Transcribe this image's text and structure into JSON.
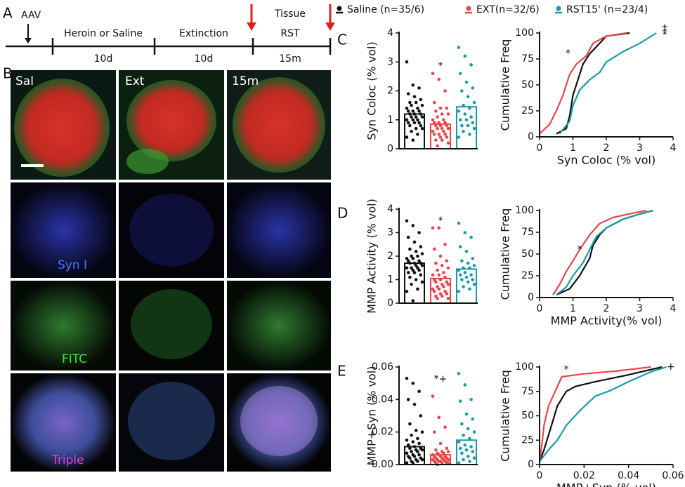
{
  "panel_labels": {
    "a": "A",
    "b": "B",
    "c": "C",
    "d": "D",
    "e": "E"
  },
  "timeline": {
    "aav": "AAV",
    "tissue": "Tissue",
    "phases": [
      {
        "label": "Heroin or Saline",
        "duration": "10d"
      },
      {
        "label": "Extinction",
        "duration": "10d"
      },
      {
        "label": "RST",
        "duration": "15m"
      }
    ]
  },
  "images": {
    "columns": [
      "Sal",
      "Ext",
      "15m"
    ],
    "rows": [
      "Syn I",
      "FITC",
      "Triple"
    ]
  },
  "chart_data": [
    {
      "type": "strip-bar",
      "ylabel": "Syn Coloc (% vol)",
      "ylim": [
        0,
        4
      ],
      "yticks": [
        0,
        1,
        2,
        3,
        4
      ],
      "series": [
        {
          "name": "Saline (n=35/6)",
          "color": "#111111",
          "mean": 1.2,
          "values": [
            3.0,
            2.2,
            2.1,
            1.9,
            1.8,
            1.7,
            1.6,
            1.6,
            1.5,
            1.5,
            1.4,
            1.4,
            1.3,
            1.3,
            1.3,
            1.2,
            1.2,
            1.2,
            1.1,
            1.1,
            1.1,
            1.0,
            1.0,
            1.0,
            0.9,
            0.9,
            0.9,
            0.8,
            0.8,
            0.7,
            0.7,
            0.6,
            0.5,
            0.4,
            0.3
          ]
        },
        {
          "name": "EXT(n=32/6)",
          "color": "#e8464b",
          "mean": 0.85,
          "values": [
            2.6,
            2.4,
            2.0,
            1.6,
            1.4,
            1.4,
            1.3,
            1.2,
            1.2,
            1.1,
            1.0,
            1.0,
            0.9,
            0.9,
            0.9,
            0.8,
            0.8,
            0.8,
            0.7,
            0.7,
            0.7,
            0.6,
            0.6,
            0.5,
            0.5,
            0.5,
            0.4,
            0.4,
            0.3,
            0.3,
            0.2,
            0.1
          ]
        },
        {
          "name": "RST15' (n=23/4)",
          "color": "#1a9aa8",
          "mean": 1.45,
          "values": [
            3.5,
            3.2,
            2.9,
            2.6,
            2.3,
            2.1,
            2.0,
            1.8,
            1.6,
            1.5,
            1.4,
            1.3,
            1.2,
            1.1,
            1.0,
            1.0,
            0.9,
            0.8,
            0.8,
            0.7,
            0.6,
            0.5,
            0.4
          ]
        }
      ],
      "annotations": [
        {
          "text": "*",
          "x": 1,
          "y": 2.85
        }
      ]
    },
    {
      "type": "line",
      "ylabel": "Cumulative Freq",
      "xlabel": "Syn Coloc (% vol)",
      "xlim": [
        0,
        4
      ],
      "xticks": [
        0,
        1,
        2,
        3,
        4
      ],
      "ylim": [
        0,
        100
      ],
      "yticks": [
        0,
        25,
        50,
        75,
        100
      ],
      "series": [
        {
          "color": "#111111",
          "x": [
            0.5,
            0.8,
            0.9,
            1.0,
            1.2,
            1.3,
            1.5,
            1.8,
            2.0,
            2.7
          ],
          "values": [
            3,
            8,
            20,
            40,
            60,
            70,
            80,
            90,
            97,
            100
          ]
        },
        {
          "color": "#e8464b",
          "x": [
            0,
            0.3,
            0.5,
            0.7,
            0.8,
            0.9,
            1.1,
            1.4,
            1.6,
            2.0,
            2.6
          ],
          "values": [
            3,
            12,
            25,
            40,
            50,
            60,
            70,
            78,
            90,
            97,
            100
          ]
        },
        {
          "color": "#1a9aa8",
          "x": [
            0.6,
            0.9,
            1.0,
            1.2,
            1.5,
            1.8,
            2.0,
            2.5,
            3.0,
            3.5
          ],
          "values": [
            3,
            15,
            30,
            45,
            55,
            62,
            72,
            82,
            90,
            100
          ]
        }
      ],
      "annotations": [
        {
          "text": "*",
          "x": 0.85,
          "y": 80
        },
        {
          "text": "‡",
          "x": 3.75,
          "y": 104
        },
        {
          "text": "*",
          "x": 3.75,
          "y": 98
        }
      ]
    },
    {
      "type": "strip-bar",
      "ylabel": "MMP Activity (% vol)",
      "ylim": [
        0,
        4
      ],
      "yticks": [
        0,
        1,
        2,
        3,
        4
      ],
      "series": [
        {
          "color": "#111111",
          "mean": 1.7,
          "values": [
            3.5,
            3.3,
            3.0,
            2.8,
            2.6,
            2.4,
            2.3,
            2.2,
            2.1,
            2.0,
            2.0,
            1.9,
            1.9,
            1.8,
            1.8,
            1.7,
            1.7,
            1.7,
            1.6,
            1.6,
            1.5,
            1.5,
            1.5,
            1.4,
            1.4,
            1.3,
            1.3,
            1.2,
            1.1,
            1.0,
            0.9,
            0.8,
            0.6,
            0.5,
            0.1
          ]
        },
        {
          "color": "#e8464b",
          "mean": 1.05,
          "values": [
            3.2,
            3.2,
            2.5,
            2.3,
            2.0,
            1.8,
            1.7,
            1.6,
            1.5,
            1.4,
            1.3,
            1.2,
            1.2,
            1.1,
            1.0,
            1.0,
            0.9,
            0.9,
            0.8,
            0.8,
            0.7,
            0.7,
            0.6,
            0.6,
            0.5,
            0.5,
            0.4,
            0.4,
            0.3,
            0.3,
            0.2,
            0.2
          ]
        },
        {
          "color": "#1a9aa8",
          "mean": 1.45,
          "values": [
            3.4,
            3.0,
            2.8,
            2.4,
            2.2,
            1.9,
            1.8,
            1.7,
            1.6,
            1.5,
            1.5,
            1.4,
            1.3,
            1.2,
            1.2,
            1.1,
            1.0,
            1.0,
            0.9,
            0.8,
            0.7,
            0.6,
            0.5
          ]
        }
      ],
      "annotations": [
        {
          "text": "*",
          "x": 1,
          "y": 3.5
        }
      ]
    },
    {
      "type": "line",
      "ylabel": "Cumulative Freq",
      "xlabel": "MMP Activity(% vol)",
      "xlim": [
        0,
        4
      ],
      "xticks": [
        0,
        1,
        2,
        3,
        4
      ],
      "ylim": [
        0,
        100
      ],
      "yticks": [
        0,
        25,
        50,
        75,
        100
      ],
      "series": [
        {
          "color": "#111111",
          "x": [
            0.5,
            0.9,
            1.2,
            1.5,
            1.6,
            1.8,
            2.0,
            2.5,
            3.0,
            3.4
          ],
          "values": [
            3,
            10,
            25,
            45,
            60,
            72,
            80,
            90,
            96,
            100
          ]
        },
        {
          "color": "#e8464b",
          "x": [
            0.4,
            0.6,
            0.8,
            1.0,
            1.2,
            1.5,
            1.8,
            2.2,
            2.8,
            3.2
          ],
          "values": [
            3,
            15,
            30,
            42,
            55,
            72,
            85,
            92,
            97,
            100
          ]
        },
        {
          "color": "#1a9aa8",
          "x": [
            0.5,
            0.8,
            1.0,
            1.3,
            1.5,
            1.7,
            2.0,
            2.5,
            3.0,
            3.4
          ],
          "values": [
            3,
            12,
            25,
            40,
            55,
            70,
            80,
            90,
            96,
            100
          ]
        }
      ],
      "annotations": [
        {
          "text": "*",
          "x": 1.2,
          "y": 55
        }
      ]
    },
    {
      "type": "strip-bar",
      "ylabel": "MMP+Syn (% vol)",
      "ylim": [
        0,
        0.06
      ],
      "yticks": [
        {
          "value": 0,
          "label": "0.00"
        },
        0.02,
        0.04,
        0.06
      ],
      "series": [
        {
          "color": "#111111",
          "mean": 0.011,
          "values": [
            0.053,
            0.05,
            0.045,
            0.04,
            0.037,
            0.03,
            0.025,
            0.021,
            0.02,
            0.018,
            0.016,
            0.015,
            0.014,
            0.013,
            0.012,
            0.011,
            0.01,
            0.01,
            0.009,
            0.009,
            0.008,
            0.008,
            0.007,
            0.006,
            0.006,
            0.005,
            0.005,
            0.004,
            0.004,
            0.003,
            0.003,
            0.002,
            0.002,
            0.001,
            0.001
          ]
        },
        {
          "color": "#e8464b",
          "mean": 0.006,
          "values": [
            0.042,
            0.029,
            0.023,
            0.02,
            0.013,
            0.01,
            0.009,
            0.008,
            0.008,
            0.007,
            0.007,
            0.006,
            0.006,
            0.005,
            0.005,
            0.005,
            0.004,
            0.004,
            0.004,
            0.003,
            0.003,
            0.003,
            0.003,
            0.002,
            0.002,
            0.002,
            0.002,
            0.001,
            0.001,
            0.001,
            0.001,
            0
          ]
        },
        {
          "color": "#1a9aa8",
          "mean": 0.015,
          "values": [
            0.056,
            0.049,
            0.04,
            0.039,
            0.031,
            0.028,
            0.025,
            0.022,
            0.02,
            0.018,
            0.016,
            0.014,
            0.012,
            0.011,
            0.01,
            0.009,
            0.008,
            0.007,
            0.005,
            0.004,
            0.003,
            0.002,
            0.001
          ]
        }
      ],
      "annotations": [
        {
          "text": "*+",
          "x": 1,
          "y": 0.0525
        }
      ]
    },
    {
      "type": "line",
      "ylabel": "Cumulative Freq",
      "xlabel": "MMP+Syn (% vol)",
      "xlim": [
        0,
        0.06
      ],
      "xticks": [
        0,
        0.02,
        0.04,
        0.06
      ],
      "ylim": [
        0,
        100
      ],
      "yticks": [
        0,
        25,
        50,
        75,
        100
      ],
      "series": [
        {
          "color": "#111111",
          "x": [
            0,
            0.002,
            0.004,
            0.006,
            0.008,
            0.012,
            0.016,
            0.025,
            0.04,
            0.055
          ],
          "values": [
            3,
            15,
            30,
            45,
            60,
            75,
            80,
            85,
            92,
            100
          ]
        },
        {
          "color": "#e8464b",
          "x": [
            0,
            0.001,
            0.002,
            0.004,
            0.006,
            0.008,
            0.01,
            0.02,
            0.035,
            0.05
          ],
          "values": [
            3,
            20,
            40,
            60,
            70,
            80,
            90,
            93,
            96,
            100
          ]
        },
        {
          "color": "#1a9aa8",
          "x": [
            0,
            0.004,
            0.008,
            0.012,
            0.018,
            0.025,
            0.032,
            0.04,
            0.05,
            0.057
          ],
          "values": [
            3,
            15,
            25,
            40,
            55,
            70,
            76,
            85,
            95,
            100
          ]
        }
      ],
      "annotations": [
        {
          "text": "*",
          "x": 0.012,
          "y": 97
        },
        {
          "text": "+",
          "x": 0.059,
          "y": 100
        }
      ]
    }
  ]
}
